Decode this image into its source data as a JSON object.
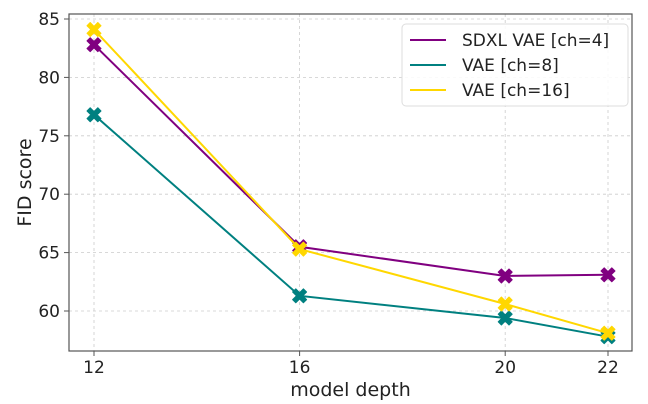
{
  "chart_data": {
    "type": "line",
    "title": "",
    "xlabel": "model depth",
    "ylabel": "FID score",
    "x": [
      12,
      16,
      20,
      22
    ],
    "xticks": [
      "12",
      "16",
      "20",
      "22"
    ],
    "yticks": [
      "60",
      "65",
      "70",
      "75",
      "80",
      "85"
    ],
    "xlim": [
      11.5,
      22.5
    ],
    "ylim": [
      56.6,
      85.5
    ],
    "grid": true,
    "legend_position": "top-right",
    "marker": "X",
    "series": [
      {
        "name": "SDXL VAE [ch=4]",
        "color": "#800080",
        "values": [
          82.8,
          65.5,
          63.0,
          63.1
        ]
      },
      {
        "name": "VAE [ch=8]",
        "color": "#008080",
        "values": [
          76.8,
          61.3,
          59.4,
          57.8
        ]
      },
      {
        "name": "VAE [ch=16]",
        "color": "#FFD700",
        "values": [
          84.1,
          65.3,
          60.6,
          58.1
        ]
      }
    ]
  }
}
